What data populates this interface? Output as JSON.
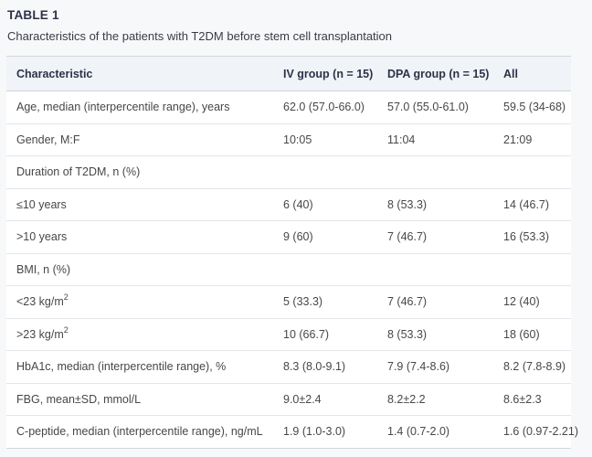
{
  "table_meta": {
    "label": "TABLE 1",
    "caption": "Characteristics of the patients with T2DM before stem cell transplantation"
  },
  "columns": {
    "characteristic": "Characteristic",
    "iv": "IV group (n = 15)",
    "dpa": "DPA group (n = 15)",
    "all": "All"
  },
  "rows": [
    {
      "label": "Age, median (interpercentile range), years",
      "iv": "62.0 (57.0-66.0)",
      "dpa": "57.0 (55.0-61.0)",
      "all": "59.5 (34-68)"
    },
    {
      "label": "Gender, M:F",
      "iv": "10:05",
      "dpa": "11:04",
      "all": "21:09"
    },
    {
      "label": "Duration of T2DM, n (%)",
      "iv": "",
      "dpa": "",
      "all": ""
    },
    {
      "label": "≤10 years",
      "iv": "6 (40)",
      "dpa": "8 (53.3)",
      "all": "14 (46.7)"
    },
    {
      "label": ">10 years",
      "iv": "9 (60)",
      "dpa": "7 (46.7)",
      "all": "16 (53.3)"
    },
    {
      "label": "BMI, n (%)",
      "iv": "",
      "dpa": "",
      "all": ""
    },
    {
      "label": "<23 kg/m",
      "label_sup": "2",
      "iv": "5 (33.3)",
      "dpa": "7 (46.7)",
      "all": "12 (40)"
    },
    {
      "label": ">23 kg/m",
      "label_sup": "2",
      "iv": "10 (66.7)",
      "dpa": "8 (53.3)",
      "all": "18 (60)"
    },
    {
      "label": "HbA1c, median (interpercentile range), %",
      "iv": "8.3 (8.0-9.1)",
      "dpa": "7.9 (7.4-8.6)",
      "all": "8.2 (7.8-8.9)"
    },
    {
      "label": "FBG, mean±SD, mmol/L",
      "iv": "9.0±2.4",
      "dpa": "8.2±2.2",
      "all": "8.6±2.3"
    },
    {
      "label": "C-peptide, median (interpercentile range), ng/mL",
      "iv": "1.9 (1.0-3.0)",
      "dpa": "1.4 (0.7-2.0)",
      "all": "1.6 (0.97-2.21)"
    }
  ],
  "colors": {
    "page_background": "#f7f8f9",
    "header_background": "#f0f3f7",
    "heading_text": "#2e3248",
    "body_text": "#474747",
    "outer_border": "#d3d7dc",
    "row_border": "#e3e5e8"
  }
}
